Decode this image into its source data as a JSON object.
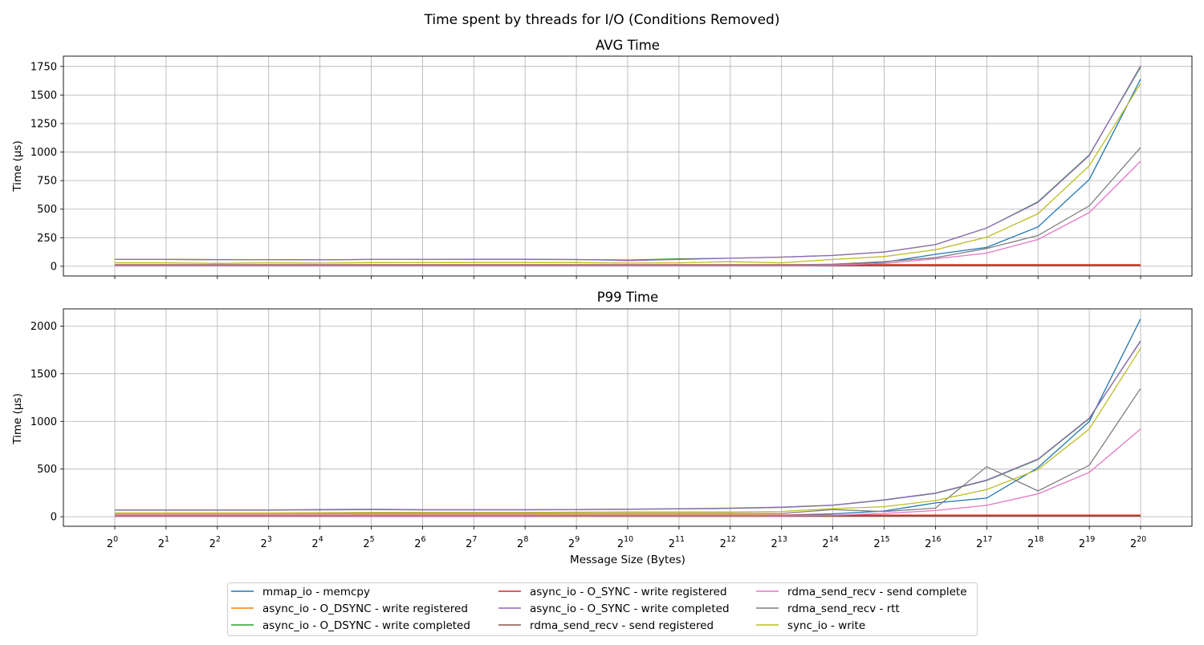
{
  "suptitle": "Time spent by threads for I/O (Conditions Removed)",
  "xlabel": "Message Size (Bytes)",
  "x_exponents": [
    0,
    1,
    2,
    3,
    4,
    5,
    6,
    7,
    8,
    9,
    10,
    11,
    12,
    13,
    14,
    15,
    16,
    17,
    18,
    19,
    20
  ],
  "tick_base": "2",
  "legend": [
    {
      "name": "mmap_io - memcpy",
      "color": "#1f77b4"
    },
    {
      "name": "async_io - O_DSYNC - write registered",
      "color": "#ff7f0e"
    },
    {
      "name": "async_io - O_DSYNC - write completed",
      "color": "#2ca02c"
    },
    {
      "name": "async_io - O_SYNC - write registered",
      "color": "#d62728"
    },
    {
      "name": "async_io - O_SYNC - write completed",
      "color": "#9467bd"
    },
    {
      "name": "rdma_send_recv - send registered",
      "color": "#8c564b"
    },
    {
      "name": "rdma_send_recv - send complete",
      "color": "#e377c2"
    },
    {
      "name": "rdma_send_recv - rtt",
      "color": "#7f7f7f"
    },
    {
      "name": "sync_io - write",
      "color": "#bcbd22"
    }
  ],
  "chart_data": [
    {
      "type": "line",
      "title": "AVG Time",
      "xlabel": "",
      "ylabel": "Time (µs)",
      "x_scale": "log2",
      "ylim": [
        -85,
        1840
      ],
      "yticks": [
        0,
        250,
        500,
        750,
        1000,
        1250,
        1500,
        1750
      ],
      "grid": true,
      "series": [
        {
          "name": "mmap_io - memcpy",
          "color": "#1f77b4",
          "values": [
            8,
            8,
            8,
            8,
            8,
            8,
            8,
            8,
            8,
            8,
            8,
            8,
            8,
            8,
            15,
            35,
            105,
            165,
            345,
            760,
            1640
          ]
        },
        {
          "name": "async_io - O_DSYNC - write registered",
          "color": "#ff7f0e",
          "values": [
            15,
            15,
            15,
            15,
            15,
            15,
            15,
            15,
            15,
            15,
            15,
            15,
            15,
            15,
            15,
            15,
            15,
            15,
            15,
            15,
            15
          ]
        },
        {
          "name": "async_io - O_DSYNC - write completed",
          "color": "#2ca02c",
          "values": [
            60,
            60,
            58,
            58,
            56,
            60,
            60,
            60,
            60,
            58,
            55,
            65,
            70,
            80,
            95,
            125,
            190,
            335,
            565,
            975,
            1745
          ]
        },
        {
          "name": "async_io - O_SYNC - write registered",
          "color": "#d62728",
          "values": [
            12,
            12,
            12,
            12,
            12,
            12,
            12,
            12,
            12,
            12,
            12,
            12,
            12,
            12,
            12,
            12,
            12,
            12,
            12,
            12,
            12
          ]
        },
        {
          "name": "async_io - O_SYNC - write completed",
          "color": "#9467bd",
          "values": [
            60,
            60,
            58,
            58,
            56,
            60,
            60,
            62,
            62,
            60,
            50,
            60,
            70,
            80,
            95,
            125,
            190,
            335,
            560,
            970,
            1755
          ]
        },
        {
          "name": "rdma_send_recv - send registered",
          "color": "#8c564b",
          "values": [
            5,
            5,
            5,
            5,
            5,
            5,
            5,
            5,
            5,
            5,
            5,
            5,
            5,
            5,
            5,
            5,
            5,
            5,
            5,
            5,
            5
          ]
        },
        {
          "name": "rdma_send_recv - send complete",
          "color": "#e377c2",
          "values": [
            5,
            5,
            5,
            5,
            5,
            5,
            5,
            5,
            5,
            5,
            5,
            5,
            5,
            5,
            10,
            25,
            65,
            115,
            235,
            470,
            920
          ]
        },
        {
          "name": "rdma_send_recv - rtt",
          "color": "#7f7f7f",
          "values": [
            12,
            12,
            12,
            12,
            12,
            12,
            12,
            12,
            12,
            12,
            12,
            12,
            12,
            12,
            18,
            40,
            75,
            155,
            270,
            530,
            1040
          ]
        },
        {
          "name": "sync_io - write",
          "color": "#bcbd22",
          "values": [
            30,
            30,
            25,
            30,
            28,
            32,
            33,
            33,
            33,
            32,
            28,
            30,
            40,
            30,
            60,
            85,
            145,
            255,
            460,
            880,
            1600
          ]
        }
      ]
    },
    {
      "type": "line",
      "title": "P99 Time",
      "xlabel": "Message Size (Bytes)",
      "ylabel": "Time (µs)",
      "x_scale": "log2",
      "ylim": [
        -100,
        2180
      ],
      "yticks": [
        0,
        500,
        1000,
        1500,
        2000
      ],
      "grid": true,
      "series": [
        {
          "name": "mmap_io - memcpy",
          "color": "#1f77b4",
          "values": [
            15,
            15,
            15,
            15,
            15,
            15,
            15,
            15,
            15,
            15,
            15,
            15,
            15,
            15,
            30,
            60,
            145,
            195,
            515,
            1000,
            2075
          ]
        },
        {
          "name": "async_io - O_DSYNC - write registered",
          "color": "#ff7f0e",
          "values": [
            18,
            18,
            18,
            18,
            18,
            18,
            18,
            18,
            18,
            18,
            18,
            18,
            18,
            18,
            18,
            18,
            18,
            18,
            18,
            18,
            18
          ]
        },
        {
          "name": "async_io - O_DSYNC - write completed",
          "color": "#2ca02c",
          "values": [
            70,
            70,
            70,
            70,
            72,
            75,
            72,
            72,
            72,
            75,
            78,
            82,
            88,
            98,
            120,
            175,
            245,
            380,
            600,
            1030,
            1845
          ]
        },
        {
          "name": "async_io - O_SYNC - write registered",
          "color": "#d62728",
          "values": [
            15,
            15,
            15,
            15,
            15,
            15,
            15,
            15,
            15,
            15,
            15,
            15,
            15,
            15,
            15,
            15,
            15,
            15,
            15,
            15,
            15
          ]
        },
        {
          "name": "async_io - O_SYNC - write completed",
          "color": "#9467bd",
          "values": [
            72,
            72,
            72,
            72,
            75,
            78,
            74,
            74,
            74,
            76,
            80,
            84,
            90,
            100,
            122,
            178,
            248,
            385,
            605,
            1035,
            1840
          ]
        },
        {
          "name": "rdma_send_recv - send registered",
          "color": "#8c564b",
          "values": [
            5,
            5,
            5,
            5,
            5,
            5,
            5,
            5,
            5,
            5,
            5,
            5,
            5,
            5,
            5,
            5,
            5,
            5,
            5,
            5,
            5
          ]
        },
        {
          "name": "rdma_send_recv - send complete",
          "color": "#e377c2",
          "values": [
            10,
            10,
            10,
            10,
            10,
            10,
            10,
            10,
            10,
            10,
            10,
            10,
            10,
            10,
            15,
            35,
            65,
            120,
            240,
            465,
            920
          ]
        },
        {
          "name": "rdma_send_recv - rtt",
          "color": "#7f7f7f",
          "values": [
            35,
            35,
            35,
            35,
            35,
            35,
            35,
            35,
            35,
            35,
            35,
            35,
            35,
            35,
            75,
            55,
            90,
            525,
            270,
            540,
            1345
          ]
        },
        {
          "name": "sync_io - write",
          "color": "#bcbd22",
          "values": [
            40,
            40,
            40,
            40,
            42,
            45,
            45,
            45,
            45,
            48,
            50,
            50,
            50,
            55,
            85,
            105,
            170,
            285,
            495,
            920,
            1765
          ]
        }
      ]
    }
  ]
}
